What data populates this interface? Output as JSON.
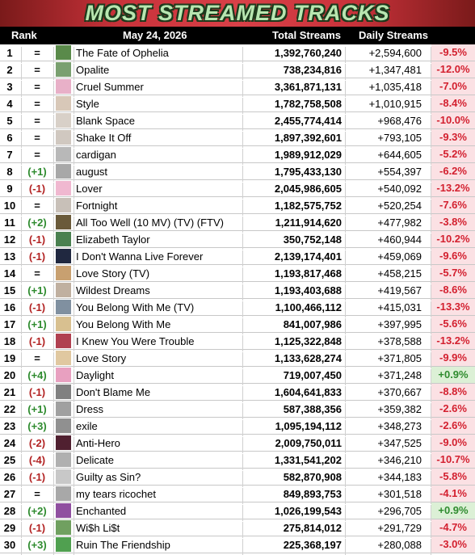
{
  "header": {
    "title": "MOST STREAMED TRACKS",
    "columns": [
      "Rank",
      "May 24, 2026",
      "Total Streams",
      "Daily Streams"
    ]
  },
  "table": {
    "rows": [
      [
        "1",
        "=",
        "The Fate of Ophelia",
        "1,392,760,240",
        "+2,594,600",
        "-9.5%"
      ],
      [
        "2",
        "=",
        "Opalite",
        "738,234,816",
        "+1,347,481",
        "-12.0%"
      ],
      [
        "3",
        "=",
        "Cruel Summer",
        "3,361,871,131",
        "+1,035,418",
        "-7.0%"
      ],
      [
        "4",
        "=",
        "Style",
        "1,782,758,508",
        "+1,010,915",
        "-8.4%"
      ],
      [
        "5",
        "=",
        "Blank Space",
        "2,455,774,414",
        "+968,476",
        "-10.0%"
      ],
      [
        "6",
        "=",
        "Shake It Off",
        "1,897,392,601",
        "+793,105",
        "-9.3%"
      ],
      [
        "7",
        "=",
        "cardigan",
        "1,989,912,029",
        "+644,605",
        "-5.2%"
      ],
      [
        "8",
        "(+1)",
        "august",
        "1,795,433,130",
        "+554,397",
        "-6.2%"
      ],
      [
        "9",
        "(-1)",
        "Lover",
        "2,045,986,605",
        "+540,092",
        "-13.2%"
      ],
      [
        "10",
        "=",
        "Fortnight",
        "1,182,575,752",
        "+520,254",
        "-7.6%"
      ],
      [
        "11",
        "(+2)",
        "All Too Well (10 MV) (TV) (FTV)",
        "1,211,914,620",
        "+477,982",
        "-3.8%"
      ],
      [
        "12",
        "(-1)",
        "Elizabeth Taylor",
        "350,752,148",
        "+460,944",
        "-10.2%"
      ],
      [
        "13",
        "(-1)",
        "I Don't Wanna Live Forever",
        "2,139,174,401",
        "+459,069",
        "-9.6%"
      ],
      [
        "14",
        "=",
        "Love Story (TV)",
        "1,193,817,468",
        "+458,215",
        "-5.7%"
      ],
      [
        "15",
        "(+1)",
        "Wildest Dreams",
        "1,193,403,688",
        "+419,567",
        "-8.6%"
      ],
      [
        "16",
        "(-1)",
        "You Belong With Me (TV)",
        "1,100,466,112",
        "+415,031",
        "-13.3%"
      ],
      [
        "17",
        "(+1)",
        "You Belong With Me",
        "841,007,986",
        "+397,995",
        "-5.6%"
      ],
      [
        "18",
        "(-1)",
        "I Knew You Were Trouble",
        "1,125,322,848",
        "+378,588",
        "-13.2%"
      ],
      [
        "19",
        "=",
        "Love Story",
        "1,133,628,274",
        "+371,805",
        "-9.9%"
      ],
      [
        "20",
        "(+4)",
        "Daylight",
        "719,007,450",
        "+371,248",
        "+0.9%"
      ],
      [
        "21",
        "(-1)",
        "Don't Blame Me",
        "1,604,641,833",
        "+370,667",
        "-8.8%"
      ],
      [
        "22",
        "(+1)",
        "Dress",
        "587,388,356",
        "+359,382",
        "-2.6%"
      ],
      [
        "23",
        "(+3)",
        "exile",
        "1,095,194,112",
        "+348,273",
        "-2.6%"
      ],
      [
        "24",
        "(-2)",
        "Anti-Hero",
        "2,009,750,011",
        "+347,525",
        "-9.0%"
      ],
      [
        "25",
        "(-4)",
        "Delicate",
        "1,331,541,202",
        "+346,210",
        "-10.7%"
      ],
      [
        "26",
        "(-1)",
        "Guilty as Sin?",
        "582,870,908",
        "+344,183",
        "-5.8%"
      ],
      [
        "27",
        "=",
        "my tears ricochet",
        "849,893,753",
        "+301,518",
        "-4.1%"
      ],
      [
        "28",
        "(+2)",
        "Enchanted",
        "1,026,199,543",
        "+296,705",
        "+0.9%"
      ],
      [
        "29",
        "(-1)",
        "Wi$h Li$t",
        "275,814,012",
        "+291,729",
        "-4.7%"
      ],
      [
        "30",
        "(+3)",
        "Ruin The Friendship",
        "225,368,197",
        "+280,088",
        "-3.0%"
      ]
    ]
  }
}
